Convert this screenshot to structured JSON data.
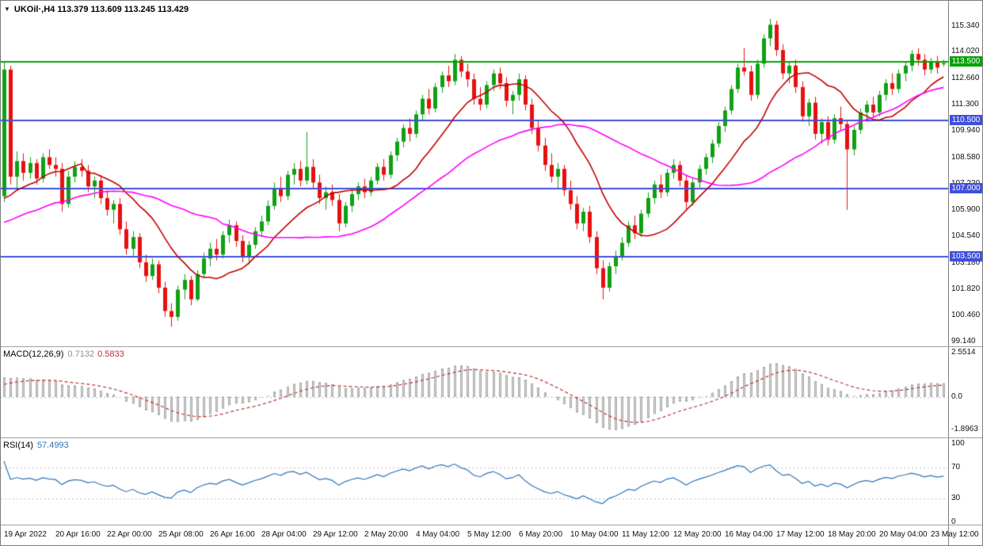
{
  "panel_titles": {
    "main": "UKOil·,H4 113.379 113.609 113.245 113.429",
    "macd_name": "MACD(12,26,9)",
    "macd_main": "0.7132",
    "macd_signal": "0.5833",
    "rsi_name": "RSI(14)",
    "rsi_value": "57.4993"
  },
  "quick_trade_arrow": "▼",
  "chart_data": [
    {
      "type": "candlestick",
      "title": "UKOil,H4",
      "symbol": "UKOil",
      "timeframe": "H4",
      "current_bar": {
        "open": 113.379,
        "high": 113.609,
        "low": 113.245,
        "close": 113.429
      },
      "up_color": "#10A015",
      "down_color": "#E81010",
      "y_range": [
        98.89,
        116.63
      ],
      "y_axis_ticks": [
        "115.340",
        "114.020",
        "112.660",
        "111.300",
        "109.940",
        "108.580",
        "107.220",
        "105.900",
        "104.540",
        "103.180",
        "101.820",
        "100.460",
        "99.140"
      ],
      "x_labels": [
        "19 Apr 2022",
        "20 Apr 16:00",
        "22 Apr 00:00",
        "25 Apr 08:00",
        "26 Apr 16:00",
        "28 Apr 04:00",
        "29 Apr 12:00",
        "2 May 20:00",
        "4 May 04:00",
        "5 May 12:00",
        "6 May 20:00",
        "10 May 04:00",
        "11 May 12:00",
        "12 May 20:00",
        "16 May 04:00",
        "17 May 12:00",
        "18 May 20:00",
        "20 May 04:00",
        "23 May 12:00"
      ],
      "label_step": 8,
      "hlines": [
        {
          "price": 113.5,
          "label": "113.500",
          "color": "#00A400"
        },
        {
          "price": 110.5,
          "label": "110.500",
          "color": "#3E4FDC"
        },
        {
          "price": 107.0,
          "label": "107.000",
          "color": "#3E4FDC"
        },
        {
          "price": 103.5,
          "label": "103.500",
          "color": "#3E4FDC"
        }
      ],
      "overlays": [
        {
          "name": "ma-fast",
          "method": "sma",
          "period": 13,
          "color": "#C00000"
        },
        {
          "name": "ma-slow",
          "method": "sma",
          "period": 34,
          "color": "#FF00FF"
        }
      ],
      "prehistory_closes": [
        101.8,
        102.4,
        102.0,
        101.5,
        102.2,
        102.8,
        102.3,
        101.9,
        102.6,
        103.2,
        102.7,
        102.2,
        103.0,
        103.6,
        103.1,
        102.5,
        103.3,
        104.0,
        103.5,
        103.0,
        103.8,
        104.5,
        104.0,
        103.4,
        104.2,
        104.9,
        104.4,
        103.8,
        104.6,
        105.3,
        104.8,
        104.2,
        105.0,
        105.7,
        105.2,
        104.6,
        105.4,
        106.1,
        105.6,
        105.0,
        105.8,
        106.4,
        105.9,
        105.3,
        106.0,
        106.6,
        106.2,
        105.7,
        106.3,
        106.5
      ],
      "ohlc": [
        [
          106.6,
          113.5,
          106.3,
          113.1
        ],
        [
          113.1,
          113.3,
          107.2,
          107.6
        ],
        [
          107.6,
          108.9,
          107.0,
          108.4
        ],
        [
          108.4,
          108.8,
          107.4,
          107.8
        ],
        [
          107.8,
          108.6,
          107.5,
          108.3
        ],
        [
          108.3,
          108.5,
          107.2,
          107.5
        ],
        [
          107.5,
          108.8,
          107.3,
          108.6
        ],
        [
          108.6,
          109.0,
          108.0,
          108.2
        ],
        [
          108.2,
          108.6,
          107.6,
          108.0
        ],
        [
          108.0,
          108.3,
          105.8,
          106.2
        ],
        [
          106.2,
          107.9,
          106.0,
          107.6
        ],
        [
          107.6,
          108.4,
          107.3,
          108.1
        ],
        [
          108.1,
          108.5,
          107.6,
          107.9
        ],
        [
          107.9,
          108.2,
          106.8,
          107.1
        ],
        [
          107.1,
          107.6,
          106.5,
          107.4
        ],
        [
          107.4,
          107.7,
          106.2,
          106.5
        ],
        [
          106.5,
          106.9,
          105.6,
          105.9
        ],
        [
          105.9,
          106.4,
          105.2,
          106.2
        ],
        [
          106.2,
          106.5,
          104.6,
          104.9
        ],
        [
          104.9,
          105.3,
          103.6,
          103.9
        ],
        [
          103.9,
          104.8,
          103.5,
          104.5
        ],
        [
          104.5,
          104.7,
          102.9,
          103.2
        ],
        [
          103.2,
          103.6,
          102.2,
          102.5
        ],
        [
          102.5,
          103.4,
          102.3,
          103.1
        ],
        [
          103.1,
          103.3,
          101.6,
          101.9
        ],
        [
          101.9,
          102.2,
          100.4,
          100.7
        ],
        [
          100.7,
          101.1,
          99.9,
          100.4
        ],
        [
          100.4,
          102.0,
          100.2,
          101.8
        ],
        [
          101.8,
          102.6,
          101.3,
          102.3
        ],
        [
          102.3,
          102.5,
          101.0,
          101.3
        ],
        [
          101.3,
          102.8,
          101.2,
          102.6
        ],
        [
          102.6,
          103.7,
          102.4,
          103.4
        ],
        [
          103.4,
          104.2,
          103.0,
          103.9
        ],
        [
          103.9,
          104.4,
          103.3,
          103.6
        ],
        [
          103.6,
          104.8,
          103.4,
          104.6
        ],
        [
          104.6,
          105.4,
          104.2,
          105.1
        ],
        [
          105.1,
          105.3,
          104.0,
          104.3
        ],
        [
          104.3,
          104.6,
          103.2,
          103.5
        ],
        [
          103.5,
          104.3,
          103.1,
          104.1
        ],
        [
          104.1,
          105.0,
          103.9,
          104.8
        ],
        [
          104.8,
          105.6,
          104.5,
          105.3
        ],
        [
          105.3,
          106.4,
          105.1,
          106.1
        ],
        [
          106.1,
          107.3,
          105.9,
          107.0
        ],
        [
          107.0,
          107.6,
          106.3,
          106.6
        ],
        [
          106.6,
          107.9,
          106.4,
          107.7
        ],
        [
          107.7,
          108.3,
          107.2,
          108.0
        ],
        [
          108.0,
          108.4,
          107.1,
          107.4
        ],
        [
          107.4,
          109.9,
          107.2,
          108.1
        ],
        [
          108.1,
          108.5,
          107.0,
          107.3
        ],
        [
          107.3,
          107.7,
          106.2,
          106.5
        ],
        [
          106.5,
          107.1,
          105.9,
          106.8
        ],
        [
          106.8,
          107.2,
          106.1,
          106.4
        ],
        [
          106.4,
          106.7,
          104.8,
          105.2
        ],
        [
          105.2,
          106.3,
          105.0,
          106.1
        ],
        [
          106.1,
          106.9,
          105.8,
          106.7
        ],
        [
          106.7,
          107.3,
          106.4,
          107.1
        ],
        [
          107.1,
          107.5,
          106.5,
          106.8
        ],
        [
          106.8,
          107.6,
          106.6,
          107.4
        ],
        [
          107.4,
          108.3,
          107.2,
          108.1
        ],
        [
          108.1,
          108.5,
          107.4,
          107.7
        ],
        [
          107.7,
          108.9,
          107.5,
          108.7
        ],
        [
          108.7,
          109.6,
          108.4,
          109.4
        ],
        [
          109.4,
          110.3,
          109.1,
          110.1
        ],
        [
          110.1,
          110.6,
          109.4,
          109.8
        ],
        [
          109.8,
          111.0,
          109.6,
          110.8
        ],
        [
          110.8,
          111.8,
          110.5,
          111.6
        ],
        [
          111.6,
          112.1,
          110.8,
          111.1
        ],
        [
          111.1,
          112.4,
          110.9,
          112.2
        ],
        [
          112.2,
          113.0,
          111.9,
          112.8
        ],
        [
          112.8,
          113.3,
          112.2,
          112.5
        ],
        [
          112.5,
          113.9,
          112.3,
          113.6
        ],
        [
          113.6,
          113.8,
          112.7,
          113.0
        ],
        [
          113.0,
          113.4,
          112.2,
          112.6
        ],
        [
          112.6,
          112.9,
          111.3,
          111.6
        ],
        [
          111.6,
          112.2,
          111.0,
          111.3
        ],
        [
          111.3,
          112.5,
          111.1,
          112.3
        ],
        [
          112.3,
          113.1,
          112.0,
          112.9
        ],
        [
          112.9,
          113.2,
          112.1,
          112.4
        ],
        [
          112.4,
          112.7,
          111.2,
          111.5
        ],
        [
          111.5,
          112.0,
          110.8,
          111.8
        ],
        [
          111.8,
          112.9,
          111.5,
          112.6
        ],
        [
          112.6,
          112.8,
          111.0,
          111.3
        ],
        [
          111.3,
          111.6,
          109.8,
          110.1
        ],
        [
          110.1,
          110.5,
          108.9,
          109.2
        ],
        [
          109.2,
          109.6,
          107.9,
          108.2
        ],
        [
          108.2,
          108.8,
          107.3,
          107.6
        ],
        [
          107.6,
          108.3,
          107.0,
          108.0
        ],
        [
          108.0,
          108.2,
          106.6,
          106.9
        ],
        [
          106.9,
          107.4,
          105.9,
          106.2
        ],
        [
          106.2,
          106.6,
          104.9,
          105.2
        ],
        [
          105.2,
          106.0,
          104.8,
          105.8
        ],
        [
          105.8,
          106.1,
          104.2,
          104.5
        ],
        [
          104.5,
          104.8,
          102.6,
          102.9
        ],
        [
          102.9,
          103.3,
          101.3,
          101.9
        ],
        [
          101.9,
          103.2,
          101.7,
          103.0
        ],
        [
          103.0,
          103.8,
          102.6,
          103.5
        ],
        [
          103.5,
          104.5,
          103.3,
          104.2
        ],
        [
          104.2,
          105.3,
          104.0,
          105.1
        ],
        [
          105.1,
          105.6,
          104.4,
          104.7
        ],
        [
          104.7,
          105.9,
          104.5,
          105.7
        ],
        [
          105.7,
          106.8,
          105.5,
          106.5
        ],
        [
          106.5,
          107.4,
          106.2,
          107.2
        ],
        [
          107.2,
          107.7,
          106.5,
          106.8
        ],
        [
          106.8,
          108.0,
          106.6,
          107.8
        ],
        [
          107.8,
          108.5,
          107.5,
          108.2
        ],
        [
          108.2,
          108.4,
          107.1,
          107.4
        ],
        [
          107.4,
          107.7,
          105.9,
          106.3
        ],
        [
          106.3,
          107.5,
          106.1,
          107.3
        ],
        [
          107.3,
          108.2,
          107.0,
          108.0
        ],
        [
          108.0,
          108.8,
          107.7,
          108.6
        ],
        [
          108.6,
          109.5,
          108.3,
          109.3
        ],
        [
          109.3,
          110.4,
          109.1,
          110.2
        ],
        [
          110.2,
          111.2,
          109.9,
          111.0
        ],
        [
          111.0,
          112.3,
          110.8,
          112.1
        ],
        [
          112.1,
          113.4,
          111.9,
          113.2
        ],
        [
          113.2,
          114.2,
          112.8,
          113.0
        ],
        [
          113.0,
          113.3,
          111.5,
          111.8
        ],
        [
          111.8,
          113.6,
          111.6,
          113.4
        ],
        [
          113.4,
          114.9,
          113.2,
          114.7
        ],
        [
          114.7,
          115.7,
          114.3,
          115.4
        ],
        [
          115.4,
          115.6,
          113.8,
          114.1
        ],
        [
          114.1,
          114.4,
          112.6,
          112.9
        ],
        [
          112.9,
          113.5,
          112.4,
          113.3
        ],
        [
          113.3,
          113.6,
          111.9,
          112.2
        ],
        [
          112.2,
          112.5,
          110.4,
          110.7
        ],
        [
          110.7,
          111.6,
          110.2,
          111.4
        ],
        [
          111.4,
          111.7,
          109.5,
          109.8
        ],
        [
          109.8,
          110.6,
          109.3,
          110.4
        ],
        [
          110.4,
          110.7,
          109.2,
          109.5
        ],
        [
          109.5,
          110.8,
          109.3,
          110.6
        ],
        [
          110.6,
          111.2,
          110.0,
          110.3
        ],
        [
          110.3,
          110.5,
          105.9,
          109.0
        ],
        [
          109.0,
          110.2,
          108.7,
          110.0
        ],
        [
          110.0,
          111.1,
          109.8,
          110.9
        ],
        [
          110.9,
          111.5,
          110.4,
          111.3
        ],
        [
          111.3,
          111.7,
          110.6,
          110.9
        ],
        [
          110.9,
          112.0,
          110.7,
          111.8
        ],
        [
          111.8,
          112.6,
          111.5,
          112.4
        ],
        [
          112.4,
          112.9,
          111.8,
          112.1
        ],
        [
          112.1,
          113.1,
          111.9,
          112.9
        ],
        [
          112.9,
          113.5,
          112.5,
          113.3
        ],
        [
          113.3,
          114.1,
          113.0,
          113.9
        ],
        [
          113.9,
          114.2,
          113.3,
          113.6
        ],
        [
          113.6,
          113.9,
          112.8,
          113.1
        ],
        [
          113.1,
          113.7,
          112.9,
          113.5
        ],
        [
          113.5,
          113.8,
          112.9,
          113.2
        ],
        [
          113.379,
          113.609,
          113.245,
          113.429
        ]
      ]
    },
    {
      "type": "macd",
      "title": "MACD(12,26,9)",
      "params": [
        12,
        26,
        9
      ],
      "current_values": [
        0.7132,
        0.5833
      ],
      "y_range": [
        -2.355,
        2.872
      ],
      "y_ticks": [
        {
          "value": 2.5514,
          "label": "2.5514"
        },
        {
          "value": 0,
          "label": "0.0"
        },
        {
          "value": -1.8963,
          "label": "-1.8963"
        }
      ],
      "histogram_fill": "#D6D6D6",
      "histogram_stroke": "#A9A9A9",
      "signal_color": "#C03030",
      "derived_from": "ohlc closes"
    },
    {
      "type": "rsi",
      "title": "RSI(14)",
      "period": 14,
      "current_value": 57.4993,
      "levels": [
        70,
        30
      ],
      "y_range": [
        -3,
        107
      ],
      "y_ticks": [
        {
          "value": 100,
          "label": "100"
        },
        {
          "value": 70,
          "label": "70"
        },
        {
          "value": 30,
          "label": "30"
        },
        {
          "value": 0,
          "label": "0"
        }
      ],
      "line_color": "#2F75B5",
      "derived_from": "ohlc closes"
    }
  ]
}
